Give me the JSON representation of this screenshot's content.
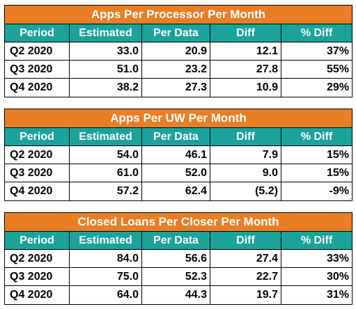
{
  "columns": [
    "Period",
    "Estimated",
    "Per Data",
    "Diff",
    "% Diff"
  ],
  "tables": [
    {
      "title": "Apps Per Processor Per Month",
      "rows": [
        [
          "Q2 2020",
          "33.0",
          "20.9",
          "12.1",
          "37%"
        ],
        [
          "Q3 2020",
          "51.0",
          "23.2",
          "27.8",
          "55%"
        ],
        [
          "Q4 2020",
          "38.2",
          "27.3",
          "10.9",
          "29%"
        ]
      ]
    },
    {
      "title": "Apps Per UW Per Month",
      "rows": [
        [
          "Q2 2020",
          "54.0",
          "46.1",
          "7.9",
          "15%"
        ],
        [
          "Q3 2020",
          "61.0",
          "52.0",
          "9.0",
          "15%"
        ],
        [
          "Q4 2020",
          "57.2",
          "62.4",
          "(5.2)",
          "-9%"
        ]
      ]
    },
    {
      "title": "Closed Loans Per Closer Per Month",
      "rows": [
        [
          "Q2 2020",
          "84.0",
          "56.6",
          "27.4",
          "33%"
        ],
        [
          "Q3 2020",
          "75.0",
          "52.3",
          "22.7",
          "30%"
        ],
        [
          "Q4 2020",
          "64.0",
          "44.3",
          "19.7",
          "31%"
        ]
      ]
    }
  ],
  "colors": {
    "title_bg": "#e97e25",
    "header_bg": "#1aa39a",
    "header_text": "#ffffff"
  }
}
